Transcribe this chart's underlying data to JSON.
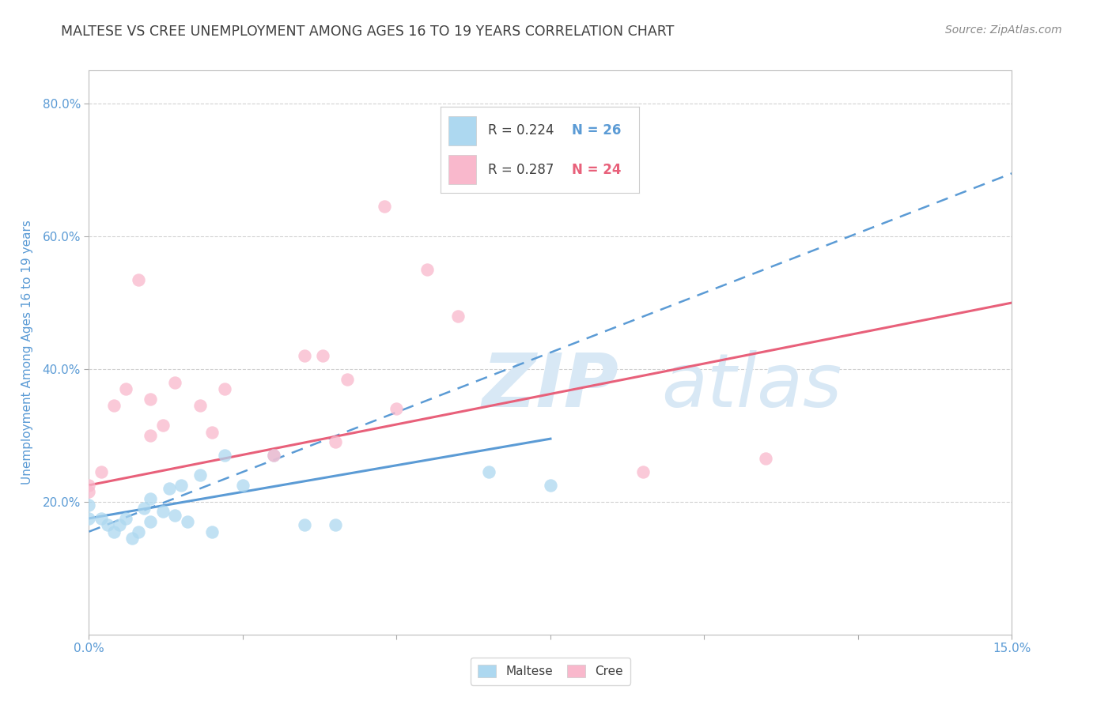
{
  "title": "MALTESE VS CREE UNEMPLOYMENT AMONG AGES 16 TO 19 YEARS CORRELATION CHART",
  "source": "Source: ZipAtlas.com",
  "ylabel": "Unemployment Among Ages 16 to 19 years",
  "x_min": 0.0,
  "x_max": 0.15,
  "y_min": 0.0,
  "y_max": 0.85,
  "x_ticks": [
    0.0,
    0.025,
    0.05,
    0.075,
    0.1,
    0.125,
    0.15
  ],
  "x_tick_labels": [
    "0.0%",
    "",
    "",
    "",
    "",
    "",
    "15.0%"
  ],
  "y_ticks": [
    0.2,
    0.4,
    0.6,
    0.8
  ],
  "y_tick_labels": [
    "20.0%",
    "40.0%",
    "60.0%",
    "80.0%"
  ],
  "maltese_R": "0.224",
  "maltese_N": "26",
  "cree_R": "0.287",
  "cree_N": "24",
  "maltese_color": "#add8f0",
  "cree_color": "#f9b8cc",
  "maltese_line_color": "#5b9bd5",
  "cree_line_color": "#e8607a",
  "maltese_x": [
    0.0,
    0.0,
    0.002,
    0.003,
    0.004,
    0.005,
    0.006,
    0.007,
    0.008,
    0.009,
    0.01,
    0.01,
    0.012,
    0.013,
    0.014,
    0.015,
    0.016,
    0.018,
    0.02,
    0.022,
    0.025,
    0.03,
    0.035,
    0.04,
    0.065,
    0.075
  ],
  "maltese_y": [
    0.195,
    0.175,
    0.175,
    0.165,
    0.155,
    0.165,
    0.175,
    0.145,
    0.155,
    0.19,
    0.205,
    0.17,
    0.185,
    0.22,
    0.18,
    0.225,
    0.17,
    0.24,
    0.155,
    0.27,
    0.225,
    0.27,
    0.165,
    0.165,
    0.245,
    0.225
  ],
  "cree_x": [
    0.0,
    0.0,
    0.002,
    0.004,
    0.006,
    0.008,
    0.01,
    0.01,
    0.012,
    0.014,
    0.018,
    0.02,
    0.022,
    0.03,
    0.035,
    0.038,
    0.04,
    0.042,
    0.048,
    0.05,
    0.055,
    0.06,
    0.09,
    0.11
  ],
  "cree_y": [
    0.225,
    0.215,
    0.245,
    0.345,
    0.37,
    0.535,
    0.3,
    0.355,
    0.315,
    0.38,
    0.345,
    0.305,
    0.37,
    0.27,
    0.42,
    0.42,
    0.29,
    0.385,
    0.645,
    0.34,
    0.55,
    0.48,
    0.245,
    0.265
  ],
  "background_color": "#ffffff",
  "grid_color": "#cccccc",
  "watermark_color": "#d8e8f5",
  "title_color": "#404040",
  "axis_label_color": "#5b9bd5",
  "tick_label_color": "#5b9bd5"
}
